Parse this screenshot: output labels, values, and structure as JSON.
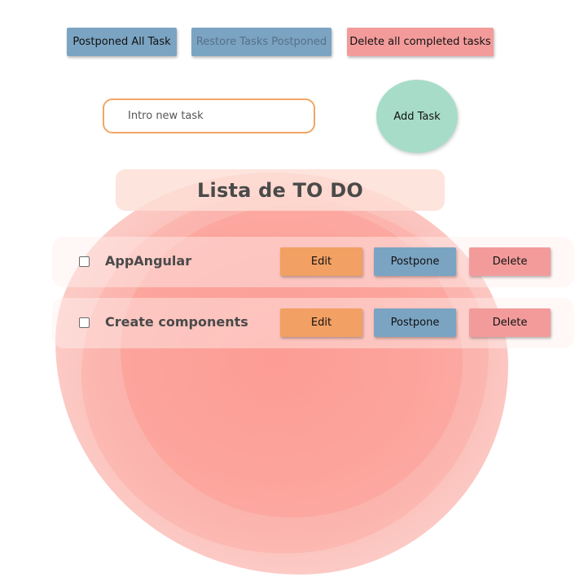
{
  "toolbar": {
    "postpone_all_label": "Postponed All Task",
    "restore_label": "Restore Tasks Postponed",
    "delete_completed_label": "Delete all completed tasks"
  },
  "new_task": {
    "placeholder": "Intro new task",
    "value": "",
    "add_label": "Add Task"
  },
  "list": {
    "title": "Lista de TO DO",
    "tasks": [
      {
        "name": "AppAngular",
        "checked": false,
        "edit_label": "Edit",
        "postpone_label": "Postpone",
        "delete_label": "Delete"
      },
      {
        "name": "Create components",
        "checked": false,
        "edit_label": "Edit",
        "postpone_label": "Postpone",
        "delete_label": "Delete"
      }
    ]
  },
  "colors": {
    "blue_button": "#7ba4c2",
    "red_button": "#f39b9b",
    "orange_button": "#f2a064",
    "add_button": "#a7ddc8",
    "input_border": "#f3a665"
  }
}
